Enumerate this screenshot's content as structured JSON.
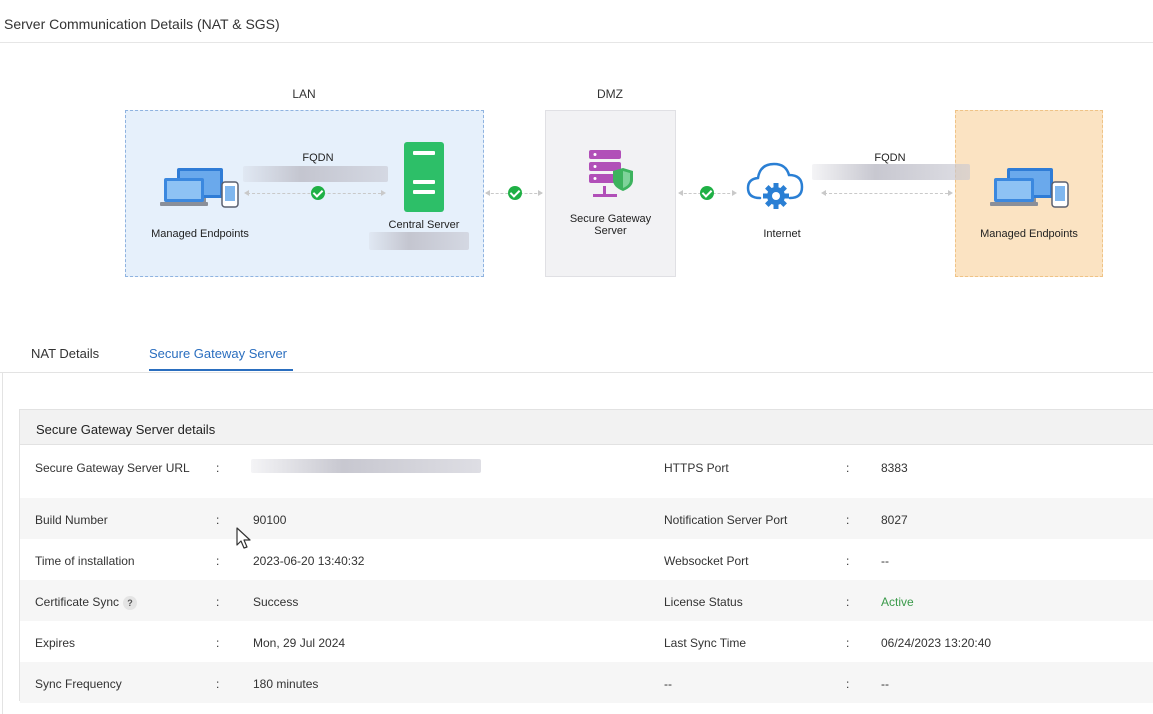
{
  "page": {
    "title": "Server Communication Details (NAT & SGS)"
  },
  "diagram": {
    "zones": {
      "lan": "LAN",
      "dmz": "DMZ"
    },
    "nodes": {
      "lan_endpoints": "Managed Endpoints",
      "central_server": "Central Server",
      "secure_gateway": "Secure Gateway Server",
      "internet": "Internet",
      "remote_endpoints": "Managed Endpoints"
    },
    "links": {
      "fqdn_lan": "FQDN",
      "fqdn_internet": "FQDN"
    },
    "colors": {
      "lan_zone": "#e6f0fb",
      "dmz_zone": "#f2f2f4",
      "external_zone": "#fbe3c2",
      "connected_check": "#1fb045",
      "server_green": "#2dbf68",
      "gateway_purple": "#b14fb8",
      "cloud_blue": "#2a7fd4"
    },
    "icons": [
      "laptop-monitor-icon",
      "server-icon",
      "gateway-shield-icon",
      "cloud-gear-icon",
      "check-circle-icon"
    ]
  },
  "tabs": [
    {
      "label": "NAT Details",
      "active": false
    },
    {
      "label": "Secure Gateway Server",
      "active": true
    }
  ],
  "details": {
    "heading": "Secure Gateway Server details",
    "separator": ":",
    "rows": [
      {
        "label": "Secure Gateway Server URL",
        "value": "",
        "label2": "HTTPS Port",
        "value2": "8383"
      },
      {
        "label": "Build Number",
        "value": "90100",
        "label2": "Notification Server Port",
        "value2": "8027"
      },
      {
        "label": "Time of installation",
        "value": "2023-06-20 13:40:32",
        "label2": "Websocket Port",
        "value2": "--"
      },
      {
        "label": "Certificate Sync",
        "help": "?",
        "value": "Success",
        "label2": "License Status",
        "value2": "Active"
      },
      {
        "label": "Expires",
        "value": "Mon, 29 Jul 2024",
        "label2": "Last Sync Time",
        "value2": "06/24/2023 13:20:40"
      },
      {
        "label": "Sync Frequency",
        "value": "180 minutes",
        "label2": "--",
        "value2": "--"
      }
    ],
    "status_color": "#3a9a4a"
  }
}
